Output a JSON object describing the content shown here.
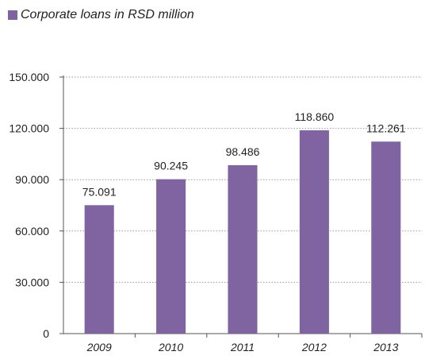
{
  "chart_data": {
    "type": "bar",
    "categories": [
      "2009",
      "2010",
      "2011",
      "2012",
      "2013"
    ],
    "series": [
      {
        "name": "Corporate loans in RSD million",
        "values": [
          75091,
          90245,
          98486,
          118860,
          112261
        ],
        "labels": [
          "75.091",
          "90.245",
          "98.486",
          "118.860",
          "112.261"
        ]
      }
    ],
    "yticks": [
      0,
      30000,
      60000,
      90000,
      120000,
      150000
    ],
    "ytick_labels": [
      "0",
      "30.000",
      "60.000",
      "90.000",
      "120.000",
      "150.000"
    ],
    "ylim": [
      0,
      150000
    ],
    "grid": true,
    "legend_position": "top-left",
    "bar_color": "#8064A2"
  }
}
